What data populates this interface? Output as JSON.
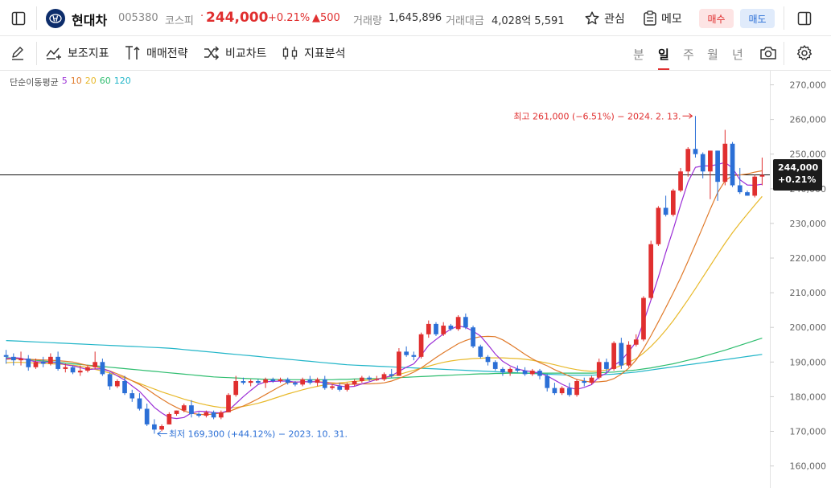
{
  "header": {
    "stock_name": "현대차",
    "stock_code": "005380",
    "market": "코스피",
    "dot": "·",
    "price": "244,000",
    "change_pct": "+0.21%",
    "change_abs": "▲500",
    "volume_label": "거래량",
    "volume_value": "1,645,896",
    "amount_label": "거래대금",
    "amount_value": "4,028억 5,591",
    "favorite_label": "관심",
    "memo_label": "메모",
    "buy_label": "매수",
    "sell_label": "매도"
  },
  "toolbar": {
    "indicator_label": "보조지표",
    "strategy_label": "매매전략",
    "compare_label": "비교차트",
    "analysis_label": "지표분석",
    "periods": [
      "분",
      "일",
      "주",
      "월",
      "년"
    ],
    "active_period": "일"
  },
  "chart": {
    "ma_legend_title": "단순이동평균",
    "ma_periods": [
      "5",
      "10",
      "20",
      "60",
      "120"
    ],
    "ma_colors": [
      "#9b2fd6",
      "#e07a2a",
      "#e8b92a",
      "#2dbd6e",
      "#20b5c8"
    ],
    "up_color": "#e02f2f",
    "down_color": "#2b6fd6",
    "high_annotation": "최고 261,000 (−6.51%) − 2024. 2. 13.",
    "low_annotation": "최저 169,300 (+44.12%) − 2023. 10. 31.",
    "current_price": "244,000",
    "current_change": "+0.21%",
    "y_ticks": [
      "270,000",
      "260,000",
      "250,000",
      "240,000",
      "230,000",
      "220,000",
      "210,000",
      "200,000",
      "190,000",
      "180,000",
      "170,000",
      "160,000"
    ]
  },
  "chart_data": {
    "type": "candlestick",
    "ylim": [
      155000,
      272000
    ],
    "candles": [
      [
        192000,
        193500,
        189500,
        191500
      ],
      [
        191500,
        192500,
        189000,
        190500
      ],
      [
        190500,
        193000,
        189000,
        191000
      ],
      [
        191000,
        192000,
        187500,
        188500
      ],
      [
        188500,
        191000,
        188000,
        190000
      ],
      [
        190000,
        191500,
        188500,
        189500
      ],
      [
        189500,
        192500,
        189000,
        191500
      ],
      [
        191500,
        193000,
        187500,
        188000
      ],
      [
        188000,
        189500,
        187000,
        188500
      ],
      [
        188500,
        189000,
        186500,
        187000
      ],
      [
        187000,
        189000,
        186000,
        187500
      ],
      [
        187500,
        189000,
        187000,
        188500
      ],
      [
        188500,
        193000,
        188000,
        190000
      ],
      [
        190000,
        191000,
        186000,
        186500
      ],
      [
        186500,
        187000,
        182000,
        183000
      ],
      [
        183000,
        185000,
        182500,
        184500
      ],
      [
        184500,
        186000,
        180500,
        181000
      ],
      [
        181000,
        182000,
        178500,
        179500
      ],
      [
        179500,
        181000,
        176000,
        176500
      ],
      [
        176500,
        178000,
        171500,
        172000
      ],
      [
        172000,
        173500,
        169300,
        170500
      ],
      [
        170500,
        172000,
        170000,
        171500
      ],
      [
        172000,
        175500,
        172000,
        175000
      ],
      [
        175000,
        176000,
        174500,
        176000
      ],
      [
        176000,
        178000,
        175500,
        177500
      ],
      [
        177500,
        179000,
        174000,
        175000
      ],
      [
        175000,
        175500,
        174000,
        174500
      ],
      [
        174500,
        176000,
        174000,
        175500
      ],
      [
        175500,
        176000,
        173500,
        174000
      ],
      [
        174000,
        176000,
        173500,
        175500
      ],
      [
        175500,
        181000,
        175500,
        180500
      ],
      [
        180500,
        186000,
        180000,
        184500
      ],
      [
        184500,
        185500,
        183500,
        184000
      ],
      [
        184000,
        185000,
        183000,
        184500
      ],
      [
        184500,
        185000,
        183500,
        184000
      ],
      [
        184000,
        185500,
        182500,
        185000
      ],
      [
        185000,
        185500,
        184000,
        184500
      ],
      [
        184500,
        185500,
        184000,
        185000
      ],
      [
        185000,
        185500,
        183500,
        184000
      ],
      [
        184000,
        184500,
        183000,
        183500
      ],
      [
        183500,
        185500,
        183000,
        185000
      ],
      [
        185000,
        186000,
        183500,
        184000
      ],
      [
        184000,
        185500,
        183000,
        185000
      ],
      [
        185000,
        186000,
        182000,
        182500
      ],
      [
        182500,
        183500,
        182000,
        183000
      ],
      [
        183000,
        184000,
        181500,
        182000
      ],
      [
        182000,
        184000,
        181500,
        183500
      ],
      [
        183500,
        185000,
        183000,
        184500
      ],
      [
        184500,
        186000,
        184000,
        185500
      ],
      [
        185500,
        186000,
        184500,
        185000
      ],
      [
        185000,
        186000,
        184500,
        185000
      ],
      [
        185000,
        187000,
        184500,
        186500
      ],
      [
        186500,
        188000,
        185500,
        186000
      ],
      [
        186000,
        194000,
        186000,
        193000
      ],
      [
        193000,
        194500,
        191500,
        192000
      ],
      [
        192000,
        193000,
        190500,
        191500
      ],
      [
        191500,
        198500,
        191000,
        198000
      ],
      [
        198000,
        202000,
        197000,
        201000
      ],
      [
        201000,
        201500,
        197500,
        198000
      ],
      [
        198000,
        201500,
        197500,
        200500
      ],
      [
        200500,
        201000,
        199000,
        199500
      ],
      [
        199500,
        203500,
        199000,
        203000
      ],
      [
        203000,
        204000,
        199500,
        200000
      ],
      [
        200000,
        200500,
        194000,
        194500
      ],
      [
        194500,
        195000,
        191000,
        191500
      ],
      [
        191500,
        192000,
        189000,
        190000
      ],
      [
        190000,
        190500,
        187500,
        188000
      ],
      [
        188000,
        188500,
        186000,
        187000
      ],
      [
        187000,
        188500,
        186000,
        188000
      ],
      [
        188000,
        189000,
        187000,
        187500
      ],
      [
        187500,
        188500,
        186000,
        186500
      ],
      [
        186500,
        188000,
        186000,
        187500
      ],
      [
        187500,
        188000,
        185000,
        186000
      ],
      [
        186000,
        186500,
        181500,
        182500
      ],
      [
        182500,
        184000,
        180500,
        181000
      ],
      [
        181000,
        183000,
        180500,
        182500
      ],
      [
        182500,
        184000,
        180000,
        180500
      ],
      [
        180500,
        185000,
        180000,
        184500
      ],
      [
        184500,
        185500,
        183000,
        184000
      ],
      [
        184000,
        186000,
        183500,
        185500
      ],
      [
        185500,
        191000,
        185000,
        190000
      ],
      [
        190000,
        191000,
        187000,
        188000
      ],
      [
        188000,
        196000,
        187500,
        195500
      ],
      [
        195500,
        197000,
        188000,
        189000
      ],
      [
        189000,
        196000,
        188500,
        195000
      ],
      [
        195000,
        198000,
        194500,
        196500
      ],
      [
        196500,
        209000,
        196000,
        208500
      ],
      [
        208500,
        225000,
        208000,
        224000
      ],
      [
        224000,
        235000,
        223500,
        234500
      ],
      [
        234500,
        238000,
        232000,
        232500
      ],
      [
        232500,
        240000,
        232000,
        239500
      ],
      [
        239500,
        246000,
        239000,
        245000
      ],
      [
        245000,
        252000,
        243500,
        251500
      ],
      [
        251500,
        261000,
        249000,
        250000
      ],
      [
        250000,
        250500,
        243000,
        245000
      ],
      [
        245000,
        251000,
        237000,
        251000
      ],
      [
        251000,
        251000,
        236500,
        242000
      ],
      [
        242000,
        257000,
        241000,
        253000
      ],
      [
        253000,
        253500,
        240500,
        241000
      ],
      [
        241000,
        246000,
        238500,
        239000
      ],
      [
        239000,
        239500,
        238000,
        238000
      ],
      [
        238000,
        244000,
        237500,
        243500
      ],
      [
        243500,
        249000,
        241000,
        244000
      ]
    ],
    "moving_averages": {
      "ma5": [
        191000,
        191300,
        191100,
        190500,
        190100,
        190000,
        189900,
        189800,
        189200,
        188900,
        188400,
        187800,
        188000,
        188000,
        187300,
        186000,
        184800,
        183100,
        181500,
        179200,
        176900,
        175300,
        174000,
        173700,
        174000,
        175300,
        175800,
        175700,
        175400,
        175300,
        176000,
        178000,
        180000,
        181800,
        183500,
        184300,
        184400,
        184500,
        184500,
        184200,
        184300,
        184300,
        184300,
        184000,
        183500,
        183100,
        182800,
        183000,
        183700,
        184300,
        185000,
        185500,
        186000,
        187300,
        188500,
        189500,
        192000,
        194800,
        196500,
        198100,
        199500,
        200400,
        200000,
        198900,
        197500,
        195000,
        192300,
        190200,
        188900,
        188000,
        187500,
        187200,
        186800,
        186000,
        184800,
        183600,
        182600,
        182100,
        182700,
        183500,
        185700,
        186800,
        189000,
        190400,
        193000,
        195800,
        201500,
        207900,
        214500,
        221600,
        228200,
        235300,
        242000,
        246200,
        246600,
        246600,
        247000,
        247600,
        246000,
        242600,
        241100,
        241000,
        241300
      ],
      "ma10": [
        190800,
        190900,
        190900,
        190800,
        190700,
        190600,
        190500,
        190400,
        190200,
        190000,
        189500,
        189000,
        188700,
        188100,
        187400,
        186600,
        185700,
        184600,
        183500,
        182200,
        180700,
        179300,
        178000,
        176900,
        175900,
        175200,
        174900,
        174800,
        175000,
        175300,
        175700,
        176500,
        177300,
        178300,
        179400,
        180600,
        181800,
        183000,
        184100,
        184200,
        184300,
        184300,
        184300,
        184200,
        184000,
        183800,
        183600,
        183600,
        183700,
        183700,
        183800,
        184000,
        184500,
        185300,
        186100,
        187100,
        188300,
        189800,
        191300,
        192700,
        194000,
        195300,
        196200,
        196900,
        197300,
        197400,
        197300,
        196400,
        195100,
        193700,
        192200,
        190900,
        189800,
        188900,
        187800,
        186900,
        185900,
        185000,
        184500,
        184200,
        184300,
        184500,
        185200,
        186500,
        188200,
        190600,
        193900,
        197600,
        201600,
        205700,
        209900,
        214300,
        219100,
        224000,
        229000,
        234100,
        238900,
        242300,
        243800,
        244000,
        244300,
        244800,
        245200
      ],
      "ma20": [
        189800,
        189900,
        189900,
        189800,
        189700,
        189600,
        189500,
        189400,
        189300,
        189100,
        188800,
        188400,
        187900,
        187400,
        186800,
        186100,
        185400,
        184600,
        183800,
        183000,
        182200,
        181400,
        180700,
        180000,
        179300,
        178700,
        178100,
        177600,
        177200,
        176900,
        176800,
        176900,
        177200,
        177600,
        178100,
        178700,
        179400,
        180100,
        180800,
        181400,
        182000,
        182500,
        183000,
        183400,
        183700,
        184000,
        184200,
        184400,
        184600,
        184800,
        185100,
        185500,
        185900,
        186400,
        187000,
        187600,
        188200,
        188800,
        189400,
        189900,
        190300,
        190600,
        190800,
        191000,
        191100,
        191200,
        191200,
        191200,
        191100,
        191000,
        190800,
        190500,
        190100,
        189700,
        189200,
        188700,
        188200,
        187800,
        187500,
        187300,
        187400,
        187700,
        188200,
        189000,
        189900,
        191000,
        192600,
        194500,
        196700,
        199200,
        201900,
        204900,
        208000,
        211200,
        214500,
        217800,
        221100,
        224300,
        227300,
        230100,
        232700,
        235300,
        237800
      ],
      "ma60": [
        191300,
        191100,
        190900,
        190700,
        190500,
        190300,
        190100,
        189900,
        189700,
        189500,
        189300,
        189100,
        188900,
        188700,
        188500,
        188300,
        188100,
        187900,
        187700,
        187500,
        187300,
        187100,
        186900,
        186700,
        186500,
        186300,
        186100,
        185900,
        185700,
        185600,
        185500,
        185400,
        185300,
        185200,
        185100,
        185000,
        185000,
        184900,
        184900,
        184900,
        184900,
        184900,
        184900,
        184900,
        184900,
        185000,
        185000,
        185100,
        185100,
        185200,
        185200,
        185300,
        185400,
        185500,
        185600,
        185700,
        185800,
        185900,
        186000,
        186100,
        186200,
        186300,
        186400,
        186500,
        186600,
        186600,
        186700,
        186700,
        186800,
        186800,
        186800,
        186800,
        186800,
        186800,
        186800,
        186800,
        186800,
        186800,
        186800,
        186800,
        186900,
        187000,
        187100,
        187300,
        187500,
        187700,
        188000,
        188300,
        188700,
        189100,
        189500,
        190000,
        190500,
        191000,
        191600,
        192200,
        192800,
        193400,
        194100,
        194800,
        195500,
        196200,
        196900
      ],
      "ma120": [
        196200,
        196100,
        196000,
        195900,
        195800,
        195700,
        195600,
        195500,
        195400,
        195300,
        195200,
        195100,
        195000,
        194900,
        194800,
        194700,
        194600,
        194500,
        194400,
        194300,
        194200,
        194100,
        194000,
        193800,
        193600,
        193400,
        193200,
        193000,
        192800,
        192600,
        192400,
        192200,
        192000,
        191800,
        191600,
        191400,
        191200,
        191000,
        190800,
        190600,
        190400,
        190200,
        190000,
        189800,
        189600,
        189400,
        189200,
        189100,
        189000,
        188900,
        188800,
        188700,
        188600,
        188500,
        188400,
        188300,
        188200,
        188100,
        188000,
        187900,
        187800,
        187700,
        187600,
        187500,
        187400,
        187300,
        187200,
        187100,
        187000,
        186900,
        186800,
        186700,
        186600,
        186500,
        186400,
        186300,
        186200,
        186200,
        186200,
        186200,
        186300,
        186400,
        186500,
        186700,
        186900,
        187100,
        187400,
        187700,
        188000,
        188300,
        188600,
        188900,
        189200,
        189500,
        189800,
        190100,
        190400,
        190700,
        191000,
        191300,
        191600,
        191900,
        192200
      ]
    }
  }
}
